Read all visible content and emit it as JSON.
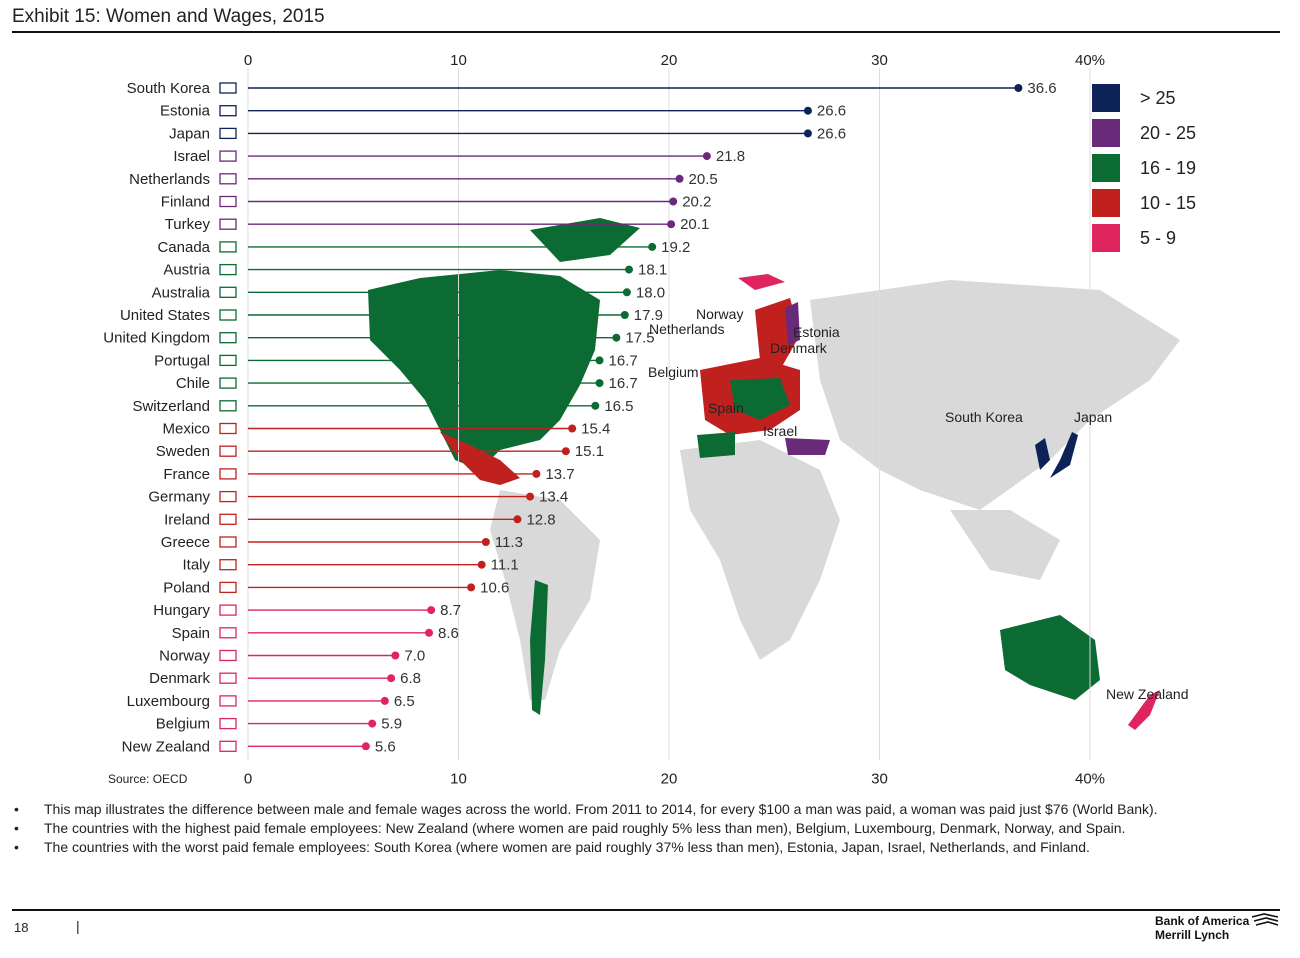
{
  "exhibit": {
    "title": "Exhibit 15: Women and Wages, 2015",
    "source": "Source: OECD"
  },
  "chart_data": {
    "type": "lollipop",
    "title": "Exhibit 15: Women and Wages, 2015",
    "xlim": [
      0,
      40
    ],
    "x_ticks": [
      "0",
      "10",
      "20",
      "30",
      "40%"
    ],
    "grid": true,
    "categories": [
      "South Korea",
      "Estonia",
      "Japan",
      "Israel",
      "Netherlands",
      "Finland",
      "Turkey",
      "Canada",
      "Austria",
      "Australia",
      "United States",
      "United Kingdom",
      "Portugal",
      "Chile",
      "Switzerland",
      "Mexico",
      "Sweden",
      "France",
      "Germany",
      "Ireland",
      "Greece",
      "Italy",
      "Poland",
      "Hungary",
      "Spain",
      "Norway",
      "Denmark",
      "Luxembourg",
      "Belgium",
      "New Zealand"
    ],
    "values": [
      36.6,
      26.6,
      26.6,
      21.8,
      20.5,
      20.2,
      20.1,
      19.2,
      18.1,
      18.0,
      17.9,
      17.5,
      16.7,
      16.7,
      16.5,
      15.4,
      15.1,
      13.7,
      13.4,
      12.8,
      11.3,
      11.1,
      10.6,
      8.7,
      8.6,
      7.0,
      6.8,
      6.5,
      5.9,
      5.6
    ],
    "value_labels": [
      "36.6",
      "26.6",
      "26.6",
      "21.8",
      "20.5",
      "20.2",
      "20.1",
      "19.2",
      "18.1",
      "18.0",
      "17.9",
      "17.5",
      "16.7",
      "16.7",
      "16.5",
      "15.4",
      "15.1",
      "13.7",
      "13.4",
      "12.8",
      "11.3",
      "11.1",
      "10.6",
      "8.7",
      "8.6",
      "7.0",
      "6.8",
      "6.5",
      "5.9",
      "5.6"
    ],
    "legend_position": "top-right",
    "legend": [
      {
        "label": "> 25",
        "color": "#0d2357"
      },
      {
        "label": "20 - 25",
        "color": "#6a2a7a"
      },
      {
        "label": "16 - 19",
        "color": "#0c6b33"
      },
      {
        "label": "10 - 15",
        "color": "#c0201e"
      },
      {
        "label": "5 - 9",
        "color": "#e0245e"
      }
    ],
    "map_labels": [
      "Norway",
      "Netherlands",
      "Estonia",
      "Denmark",
      "Belgium",
      "Spain",
      "Israel",
      "South Korea",
      "Japan",
      "New Zealand"
    ]
  },
  "notes": [
    "This map illustrates the difference between male and female wages across the world. From 2011 to 2014, for every $100 a man was paid, a woman was paid just $76 (World Bank).",
    "The countries with the highest paid female employees: New Zealand (where women are paid roughly 5% less than men), Belgium, Luxembourg, Denmark, Norway, and Spain.",
    "The countries with the worst paid female employees: South Korea (where women are paid roughly 37% less than men), Estonia, Japan, Israel, Netherlands, and Finland."
  ],
  "footer": {
    "page_number": "18",
    "separator": "|",
    "brand_line1": "Bank of America",
    "brand_line2": "Merrill Lynch"
  }
}
